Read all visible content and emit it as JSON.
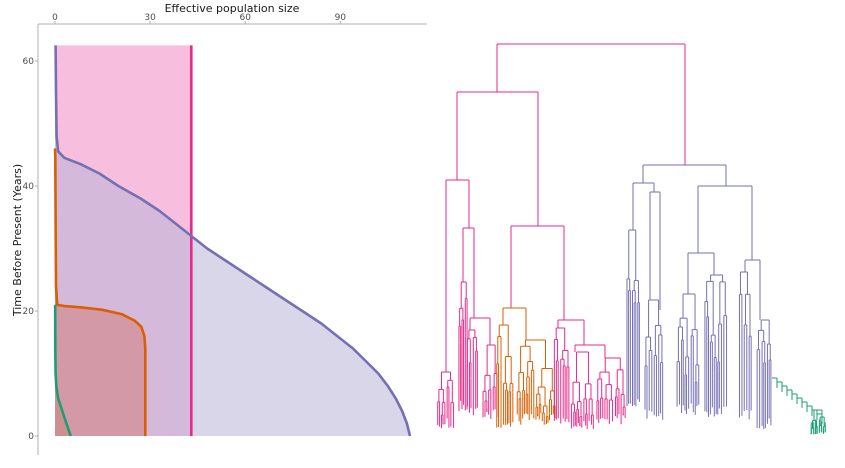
{
  "chart_data": [
    {
      "type": "area",
      "title": "",
      "xlabel": "Effective population size",
      "ylabel": "Time Before Present (Years)",
      "x_axis_position": "top",
      "xlim": [
        0,
        117
      ],
      "ylim": [
        0,
        62.5
      ],
      "xticks": [
        0,
        30,
        60,
        90
      ],
      "yticks": [
        0,
        20,
        40,
        60
      ],
      "grid": false,
      "legend": "none",
      "series": [
        {
          "color": "#e7298a",
          "fill": "#f7bbdc",
          "points": [
            [
              43,
              0
            ],
            [
              43,
              62.5
            ]
          ]
        },
        {
          "color": "#7570b3",
          "fill": "#b9b5d9",
          "points": [
            [
              112,
              0
            ],
            [
              111,
              2
            ],
            [
              109.5,
              4
            ],
            [
              107.5,
              6
            ],
            [
              105,
              8
            ],
            [
              102,
              10
            ],
            [
              98,
              12
            ],
            [
              94,
              14
            ],
            [
              89,
              16
            ],
            [
              84,
              18
            ],
            [
              78,
              20
            ],
            [
              72,
              22
            ],
            [
              66,
              24
            ],
            [
              60,
              26
            ],
            [
              54,
              28
            ],
            [
              48,
              30
            ],
            [
              43,
              32
            ],
            [
              38,
              34
            ],
            [
              33,
              36
            ],
            [
              27,
              38
            ],
            [
              20,
              40
            ],
            [
              14,
              42
            ],
            [
              8,
              43.5
            ],
            [
              3,
              44.5
            ],
            [
              1,
              45.5
            ],
            [
              0.5,
              48
            ],
            [
              0.3,
              55
            ],
            [
              0.2,
              62.5
            ]
          ]
        },
        {
          "color": "#d95f02",
          "fill": "#d17f7a",
          "points": [
            [
              28.5,
              0
            ],
            [
              28.5,
              14
            ],
            [
              28.2,
              16
            ],
            [
              27.2,
              17.5
            ],
            [
              25,
              18.5
            ],
            [
              21,
              19.5
            ],
            [
              15,
              20.2
            ],
            [
              8,
              20.6
            ],
            [
              3,
              20.8
            ],
            [
              0.7,
              21
            ],
            [
              0.3,
              24
            ],
            [
              0.2,
              35
            ],
            [
              0.1,
              45
            ],
            [
              0,
              46
            ]
          ]
        },
        {
          "color": "#1b9e77",
          "fill": "#c9877c",
          "points": [
            [
              5,
              0
            ],
            [
              3.6,
              2
            ],
            [
              2.3,
              4
            ],
            [
              1,
              6
            ],
            [
              0.4,
              8
            ],
            [
              0.2,
              10
            ],
            [
              0.1,
              14
            ],
            [
              0.05,
              21
            ]
          ]
        }
      ]
    },
    {
      "type": "dendrogram",
      "clades": [
        {
          "color": "#e7298a"
        },
        {
          "color": "#d95f02"
        },
        {
          "color": "#7570b3"
        },
        {
          "color": "#1b9e77"
        }
      ]
    }
  ]
}
